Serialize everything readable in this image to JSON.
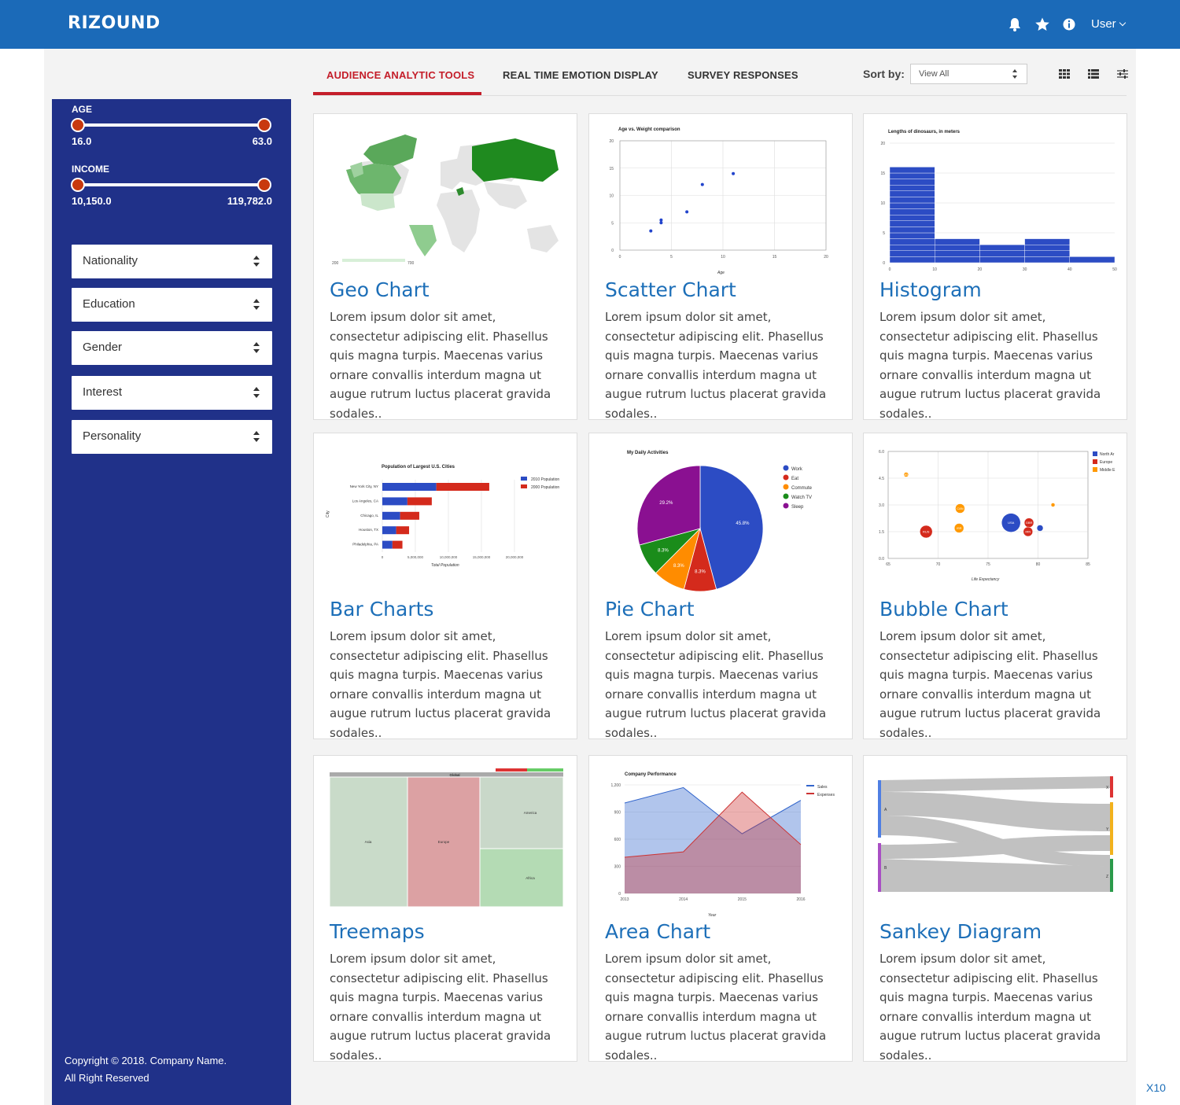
{
  "app": {
    "logo": "RIZOUND",
    "user_label": "User"
  },
  "topbar": {
    "icons": [
      "bell-icon",
      "star-icon",
      "info-icon"
    ],
    "color": "#1b6ab8"
  },
  "sidebar": {
    "color": "#203189",
    "age": {
      "label": "AGE",
      "min": "16.0",
      "max": "63.0"
    },
    "income": {
      "label": "INCOME",
      "min": "10,150.0",
      "max": "119,782.0"
    },
    "filters": [
      "Nationality",
      "Education",
      "Gender",
      "Interest",
      "Personality"
    ],
    "copyright_line1": "Copyright © 2018. Company Name.",
    "copyright_line2": "All Right Reserved"
  },
  "tabs": [
    "AUDIENCE ANALYTIC TOOLS",
    "REAL TIME EMOTION DISPLAY",
    "SURVEY RESPONSES"
  ],
  "active_tab": "AUDIENCE ANALYTIC TOOLS",
  "sort": {
    "label": "Sort by:",
    "value": "View All"
  },
  "view_icons": [
    "grid-view-icon",
    "list-view-icon",
    "filter-settings-icon"
  ],
  "cards": [
    {
      "title": "Geo Chart",
      "desc": "Lorem ipsum dolor sit amet, consectetur adipiscing elit. Phasellus quis magna turpis. Maecenas varius ornare convallis interdum magna ut augue rutrum luctus placerat gravida sodales.."
    },
    {
      "title": "Scatter Chart",
      "desc": "Lorem ipsum dolor sit amet, consectetur adipiscing elit. Phasellus quis magna turpis. Maecenas varius ornare convallis interdum magna ut augue rutrum luctus placerat gravida sodales.."
    },
    {
      "title": "Histogram",
      "desc": "Lorem ipsum dolor sit amet, consectetur adipiscing elit. Phasellus quis magna turpis. Maecenas varius ornare convallis interdum magna ut augue rutrum luctus placerat gravida sodales.."
    },
    {
      "title": "Bar Charts",
      "desc": "Lorem ipsum dolor sit amet, consectetur adipiscing elit. Phasellus quis magna turpis. Maecenas varius ornare convallis interdum magna ut augue rutrum luctus placerat gravida sodales.."
    },
    {
      "title": "Pie Chart",
      "desc": "Lorem ipsum dolor sit amet, consectetur adipiscing elit. Phasellus quis magna turpis. Maecenas varius ornare convallis interdum magna ut augue rutrum luctus placerat gravida sodales.."
    },
    {
      "title": "Bubble Chart",
      "desc": "Lorem ipsum dolor sit amet, consectetur adipiscing elit. Phasellus quis magna turpis. Maecenas varius ornare convallis interdum magna ut augue rutrum luctus placerat gravida sodales.."
    },
    {
      "title": "Treemaps",
      "desc": "Lorem ipsum dolor sit amet, consectetur adipiscing elit. Phasellus quis magna turpis. Maecenas varius ornare convallis interdum magna ut augue rutrum luctus placerat gravida sodales.."
    },
    {
      "title": "Area Chart",
      "desc": "Lorem ipsum dolor sit amet, consectetur adipiscing elit. Phasellus quis magna turpis. Maecenas varius ornare convallis interdum magna ut augue rutrum luctus placerat gravida sodales.."
    },
    {
      "title": "Sankey Diagram",
      "desc": "Lorem ipsum dolor sit amet, consectetur adipiscing elit. Phasellus quis magna turpis. Maecenas varius ornare convallis interdum magna ut augue rutrum luctus placerat gravida sodales.."
    }
  ],
  "footer_badge": "X10",
  "chart_data": [
    {
      "type": "map",
      "legend_min": "200",
      "legend_max": "700"
    },
    {
      "type": "scatter",
      "title": "Age vs. Weight comparison",
      "xlabel": "Age",
      "ylabel": "",
      "xlim": [
        0,
        20
      ],
      "ylim": [
        0,
        20
      ],
      "xticks": [
        "0",
        "5",
        "10",
        "15",
        "20"
      ],
      "yticks": [
        "0",
        "5",
        "10",
        "15",
        "20"
      ],
      "points": [
        [
          3,
          3.5
        ],
        [
          4,
          5.5
        ],
        [
          4,
          5
        ],
        [
          6.5,
          7
        ],
        [
          8,
          12
        ],
        [
          11,
          14
        ]
      ]
    },
    {
      "type": "bar",
      "title": "Lengths of dinosaurs, in meters",
      "xlim": [
        0,
        50
      ],
      "ylim": [
        0,
        20
      ],
      "xticks": [
        "0",
        "10",
        "20",
        "30",
        "40",
        "50"
      ],
      "yticks": [
        "0",
        "5",
        "10",
        "15",
        "20"
      ],
      "bins": [
        [
          0,
          10,
          16
        ],
        [
          10,
          20,
          4
        ],
        [
          20,
          30,
          3
        ],
        [
          30,
          40,
          4
        ],
        [
          40,
          50,
          1
        ]
      ]
    },
    {
      "type": "bar",
      "title": "Population of Largest U.S. Cities",
      "xlabel": "Total Population",
      "ylabel": "City",
      "categories": [
        "New York City, NY",
        "Los Angeles, CA",
        "Chicago, IL",
        "Houston, TX",
        "Philadelphia, PA"
      ],
      "series": [
        {
          "name": "2010 Population",
          "values": [
            8175000,
            3792000,
            2695000,
            2099000,
            1526000
          ]
        },
        {
          "name": "2000 Population",
          "values": [
            8008000,
            3694000,
            2896000,
            1953000,
            1517000
          ]
        }
      ],
      "xticks": [
        "0",
        "5,000,000",
        "10,000,000",
        "15,000,000",
        "20,000,000"
      ],
      "xlim": [
        0,
        20000000
      ]
    },
    {
      "type": "pie",
      "title": "My Daily Activities",
      "labels": [
        "Work",
        "Eat",
        "Commute",
        "Watch TV",
        "Sleep"
      ],
      "values": [
        45.8,
        8.3,
        8.3,
        8.3,
        29.2
      ],
      "value_labels": [
        "45.8%",
        "8.3%",
        "8.3%",
        "8.3%",
        "29.2%"
      ]
    },
    {
      "type": "scatter",
      "xlabel": "Life Expectancy",
      "xlim": [
        65,
        85
      ],
      "ylim": [
        0,
        6
      ],
      "xticks": [
        "65",
        "70",
        "75",
        "80",
        "85"
      ],
      "yticks": [
        "0.0",
        "1.5",
        "3.0",
        "4.5",
        "6.0"
      ],
      "legend": [
        "North Ar",
        "Europe",
        "Middle E"
      ],
      "points": [
        [
          66.8,
          4.7,
          "DEU",
          "Middle E"
        ],
        [
          68.8,
          1.5,
          "RUS",
          "Europe"
        ],
        [
          72.2,
          2.8,
          "CAN",
          "Middle E"
        ],
        [
          72.1,
          1.7,
          "ISR",
          "Middle E"
        ],
        [
          77.3,
          2.0,
          "USA",
          "North Ar"
        ],
        [
          79.1,
          2.0,
          "GBR",
          "Europe"
        ],
        [
          79.0,
          1.5,
          "IRN",
          "Europe"
        ],
        [
          80.2,
          1.7,
          "",
          "North Ar"
        ],
        [
          81.5,
          3.0,
          "",
          "Middle E"
        ]
      ]
    },
    {
      "type": "treemap",
      "labels": [
        "Global",
        "Asia",
        "Europe",
        "America",
        "Africa"
      ]
    },
    {
      "type": "area",
      "title": "Company Performance",
      "xlabel": "Year",
      "categories": [
        "2013",
        "2014",
        "2015",
        "2016"
      ],
      "ylim": [
        0,
        1200
      ],
      "yticks": [
        "0",
        "300",
        "600",
        "900",
        "1,200"
      ],
      "series": [
        {
          "name": "Sales",
          "values": [
            1000,
            1170,
            660,
            1030
          ]
        },
        {
          "name": "Expenses",
          "values": [
            400,
            460,
            1120,
            540
          ]
        }
      ]
    },
    {
      "type": "sankey",
      "sources": [
        "A",
        "B"
      ],
      "targets": [
        "X",
        "Y",
        "Z"
      ]
    }
  ]
}
